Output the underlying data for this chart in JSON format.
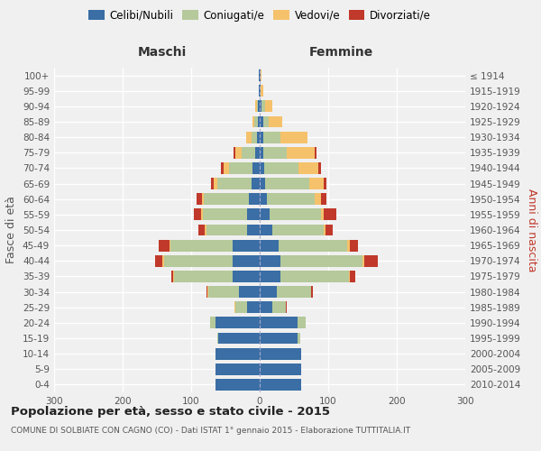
{
  "age_groups": [
    "100+",
    "95-99",
    "90-94",
    "85-89",
    "80-84",
    "75-79",
    "70-74",
    "65-69",
    "60-64",
    "55-59",
    "50-54",
    "45-49",
    "40-44",
    "35-39",
    "30-34",
    "25-29",
    "20-24",
    "15-19",
    "10-14",
    "5-9",
    "0-4"
  ],
  "birth_years": [
    "≤ 1914",
    "1915-1919",
    "1920-1924",
    "1925-1929",
    "1930-1934",
    "1935-1939",
    "1940-1944",
    "1945-1949",
    "1950-1954",
    "1955-1959",
    "1960-1964",
    "1965-1969",
    "1970-1974",
    "1975-1979",
    "1980-1984",
    "1985-1989",
    "1990-1994",
    "1995-1999",
    "2000-2004",
    "2005-2009",
    "2010-2014"
  ],
  "colors": {
    "celibi": "#3A6EA5",
    "coniugati": "#B5C99A",
    "vedovi": "#F5C26B",
    "divorziati": "#C0392B"
  },
  "maschi": {
    "celibi": [
      1,
      1,
      2,
      3,
      4,
      6,
      10,
      12,
      16,
      18,
      18,
      40,
      40,
      40,
      30,
      18,
      65,
      60,
      65,
      65,
      65
    ],
    "coniugati": [
      0,
      0,
      2,
      5,
      8,
      20,
      35,
      50,
      65,
      65,
      60,
      90,
      100,
      85,
      45,
      18,
      8,
      2,
      0,
      0,
      0
    ],
    "vedovi": [
      0,
      0,
      2,
      3,
      8,
      10,
      8,
      5,
      3,
      3,
      2,
      2,
      2,
      1,
      1,
      1,
      0,
      0,
      0,
      0,
      0
    ],
    "divorziati": [
      0,
      0,
      0,
      0,
      0,
      2,
      3,
      4,
      8,
      10,
      10,
      15,
      10,
      3,
      1,
      0,
      0,
      0,
      0,
      0,
      0
    ]
  },
  "femmine": {
    "celibi": [
      1,
      1,
      3,
      5,
      5,
      5,
      6,
      8,
      10,
      14,
      18,
      28,
      30,
      30,
      25,
      18,
      55,
      55,
      60,
      60,
      60
    ],
    "coniugati": [
      0,
      0,
      5,
      8,
      25,
      35,
      50,
      65,
      70,
      75,
      75,
      100,
      120,
      100,
      50,
      20,
      12,
      4,
      0,
      0,
      0
    ],
    "vedovi": [
      2,
      4,
      10,
      20,
      40,
      40,
      30,
      20,
      10,
      5,
      3,
      3,
      2,
      1,
      0,
      0,
      0,
      0,
      0,
      0,
      0
    ],
    "divorziati": [
      0,
      0,
      0,
      0,
      0,
      3,
      3,
      5,
      8,
      18,
      10,
      12,
      20,
      8,
      2,
      1,
      0,
      0,
      0,
      0,
      0
    ]
  },
  "title": "Popolazione per età, sesso e stato civile - 2015",
  "subtitle": "COMUNE DI SOLBIATE CON CAGNO (CO) - Dati ISTAT 1° gennaio 2015 - Elaborazione TUTTITALIA.IT",
  "xlabel_left": "Maschi",
  "xlabel_right": "Femmine",
  "ylabel_left": "Fasce di età",
  "ylabel_right": "Anni di nascita",
  "xlim": 300,
  "background_color": "#f0f0f0",
  "grid_color": "#ffffff",
  "legend_labels": [
    "Celibi/Nubili",
    "Coniugati/e",
    "Vedovi/e",
    "Divorziati/e"
  ]
}
